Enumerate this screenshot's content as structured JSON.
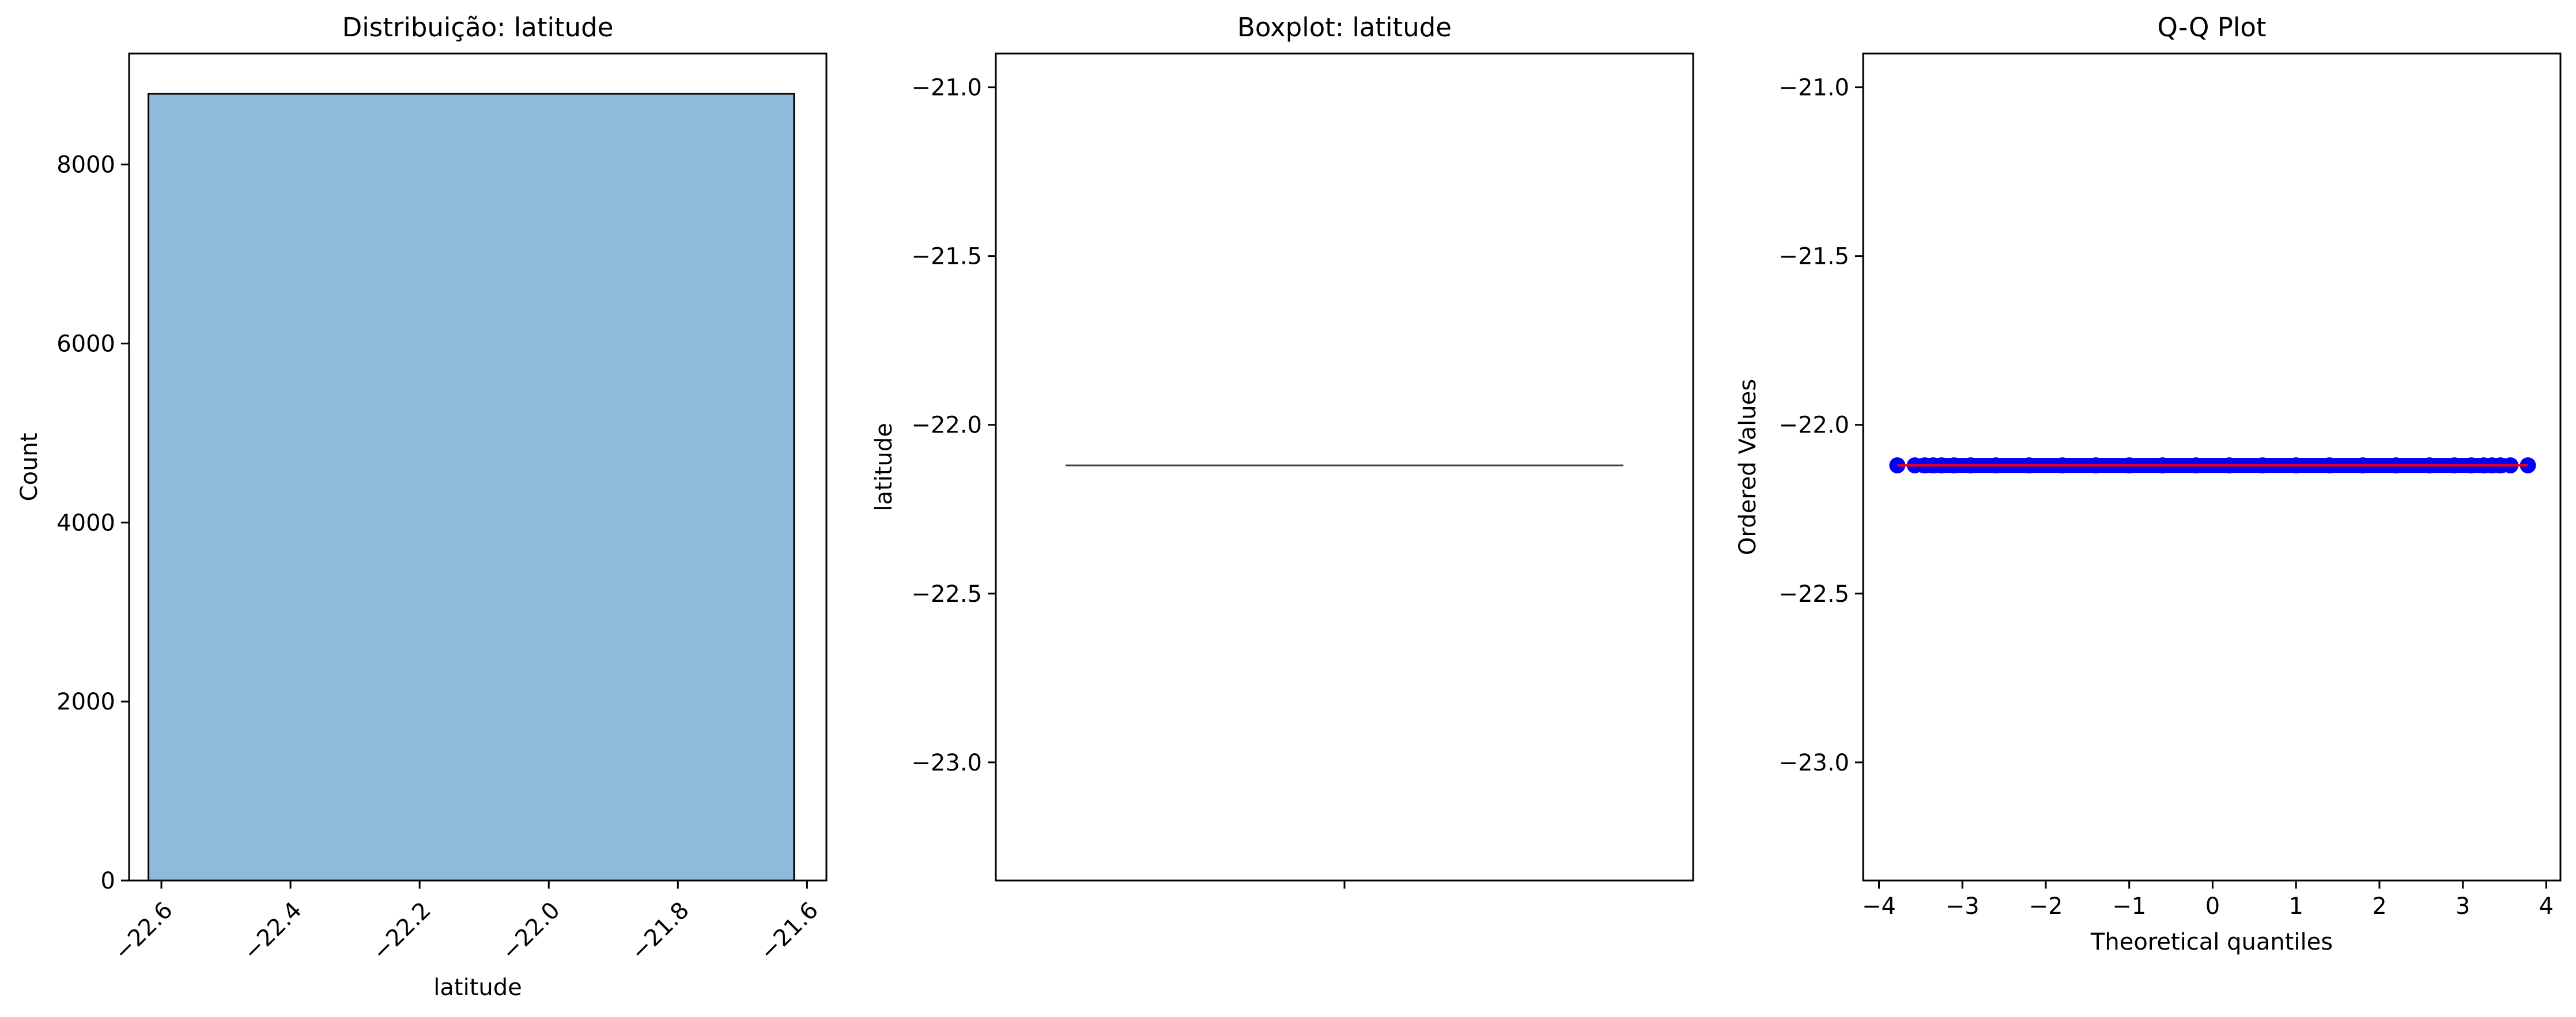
{
  "chart_data": [
    {
      "type": "bar",
      "title": "Distribuição: latitude",
      "xlabel": "latitude",
      "ylabel": "Count",
      "xlim": [
        -22.65,
        -21.57
      ],
      "ylim": [
        0,
        9240
      ],
      "xticks": [
        -22.6,
        -22.4,
        -22.2,
        -22.0,
        -21.8,
        -21.6
      ],
      "xtick_labels": [
        "−22.6",
        "−22.4",
        "−22.2",
        "−22.0",
        "−21.8",
        "−21.6"
      ],
      "yticks": [
        0,
        2000,
        4000,
        6000,
        8000
      ],
      "ytick_labels": [
        "0",
        "2000",
        "4000",
        "6000",
        "8000"
      ],
      "bins": [
        {
          "x0": -22.62,
          "x1": -21.62,
          "count": 8790
        }
      ],
      "bar_color": "#8fbad9",
      "edge_color": "#000000",
      "grid": false
    },
    {
      "type": "box",
      "title": "Boxplot: latitude",
      "xlabel": "",
      "ylabel": "latitude",
      "ylim": [
        -23.35,
        -20.9
      ],
      "yticks": [
        -21.0,
        -21.5,
        -22.0,
        -22.5,
        -23.0
      ],
      "ytick_labels": [
        "−21.0",
        "−21.5",
        "−22.0",
        "−22.5",
        "−23.0"
      ],
      "box": {
        "min": -22.12,
        "q1": -22.12,
        "median": -22.12,
        "q3": -22.12,
        "max": -22.12
      },
      "grid": false
    },
    {
      "type": "scatter",
      "title": "Q-Q Plot",
      "xlabel": "Theoretical quantiles",
      "ylabel": "Ordered Values",
      "xlim": [
        -4.0,
        4.0
      ],
      "ylim": [
        -23.35,
        -20.9
      ],
      "xticks": [
        -4,
        -3,
        -2,
        -1,
        0,
        1,
        2,
        3,
        4
      ],
      "xtick_labels": [
        "−4",
        "−3",
        "−2",
        "−1",
        "0",
        "1",
        "2",
        "3",
        "4"
      ],
      "yticks": [
        -21.0,
        -21.5,
        -22.0,
        -22.5,
        -23.0
      ],
      "ytick_labels": [
        "−21.0",
        "−21.5",
        "−22.0",
        "−22.5",
        "−23.0"
      ],
      "points": [
        {
          "x": -3.78,
          "y": -22.12
        },
        {
          "x": -3.57,
          "y": -22.12
        },
        {
          "x": -3.45,
          "y": -22.12
        },
        {
          "x": -3.35,
          "y": -22.12
        },
        {
          "x": -3.25,
          "y": -22.12
        },
        {
          "x": -3.1,
          "y": -22.12
        },
        {
          "x": -2.9,
          "y": -22.12
        },
        {
          "x": -2.6,
          "y": -22.12
        },
        {
          "x": -2.2,
          "y": -22.12
        },
        {
          "x": -1.8,
          "y": -22.12
        },
        {
          "x": -1.4,
          "y": -22.12
        },
        {
          "x": -1.0,
          "y": -22.12
        },
        {
          "x": -0.6,
          "y": -22.12
        },
        {
          "x": -0.2,
          "y": -22.12
        },
        {
          "x": 0.2,
          "y": -22.12
        },
        {
          "x": 0.6,
          "y": -22.12
        },
        {
          "x": 1.0,
          "y": -22.12
        },
        {
          "x": 1.4,
          "y": -22.12
        },
        {
          "x": 1.8,
          "y": -22.12
        },
        {
          "x": 2.2,
          "y": -22.12
        },
        {
          "x": 2.6,
          "y": -22.12
        },
        {
          "x": 2.9,
          "y": -22.12
        },
        {
          "x": 3.1,
          "y": -22.12
        },
        {
          "x": 3.25,
          "y": -22.12
        },
        {
          "x": 3.35,
          "y": -22.12
        },
        {
          "x": 3.45,
          "y": -22.12
        },
        {
          "x": 3.57,
          "y": -22.12
        },
        {
          "x": 3.78,
          "y": -22.12
        }
      ],
      "fit_line": {
        "x0": -3.78,
        "y0": -22.12,
        "x1": 3.78,
        "y1": -22.12
      },
      "point_color": "#0000ff",
      "line_color": "#ff0000",
      "grid": false
    }
  ]
}
